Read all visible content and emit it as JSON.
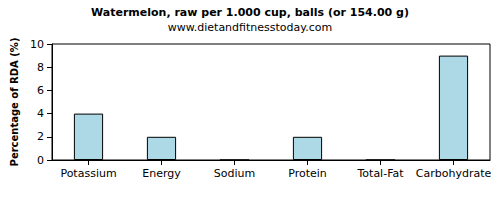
{
  "chart_data": {
    "type": "bar",
    "title": "Watermelon, raw per 1.000 cup, balls (or 154.00 g)",
    "subtitle": "www.dietandfitnesstoday.com",
    "y_label": "Percentage of RDA (%)",
    "categories": [
      "Potassium",
      "Energy",
      "Sodium",
      "Protein",
      "Total-Fat",
      "Carbohydrate"
    ],
    "values": [
      4,
      2,
      0,
      2,
      0,
      9
    ],
    "color": "#add8e6",
    "ylim": [
      0,
      10
    ],
    "yticks": [
      0,
      2,
      4,
      6,
      8,
      10
    ],
    "grid": false
  }
}
